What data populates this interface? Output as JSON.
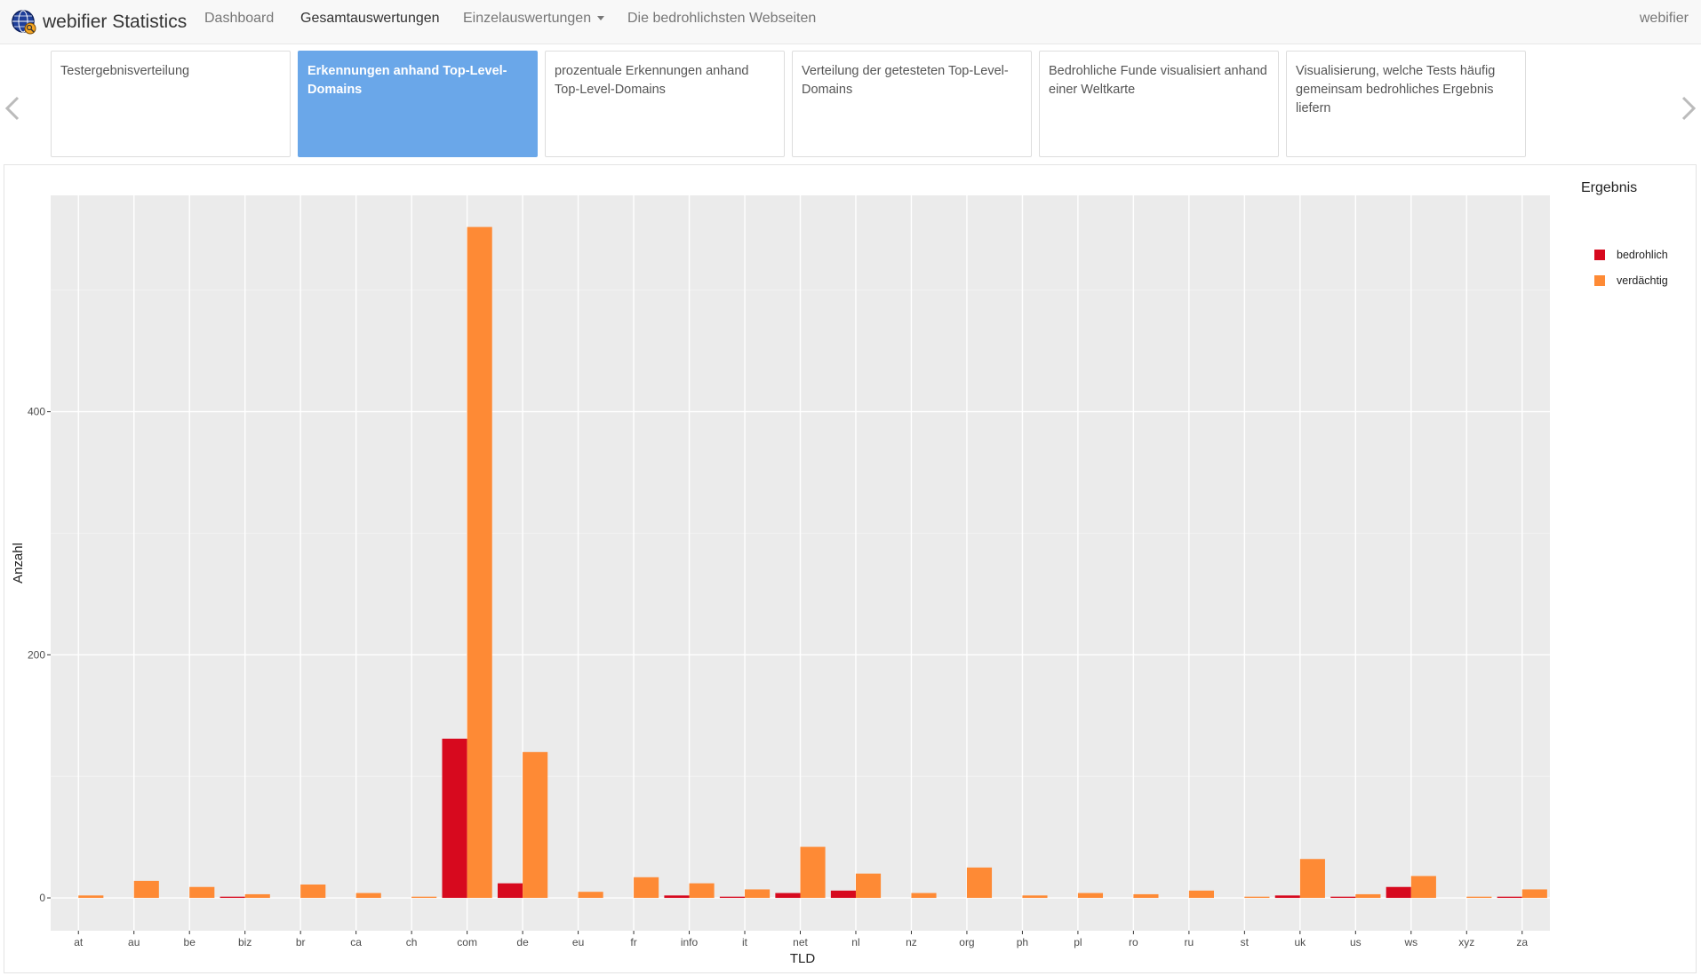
{
  "navbar": {
    "brand": "webifier Statistics",
    "items": [
      {
        "label": "Dashboard"
      },
      {
        "label": "Gesamtauswertungen"
      },
      {
        "label": "Einzelauswertungen"
      },
      {
        "label": "Die bedrohlichsten Webseiten"
      }
    ],
    "right_label": "webifier"
  },
  "carousel": {
    "cards": [
      {
        "label": "Testergebnisverteilung"
      },
      {
        "label": "Erkennungen anhand Top-Level-Domains"
      },
      {
        "label": "prozentuale Erkennungen anhand Top-Level-Domains"
      },
      {
        "label": "Verteilung der getesteten Top-Level-Domains"
      },
      {
        "label": "Bedrohliche Funde visualisiert anhand einer Weltkarte"
      },
      {
        "label": "Visualisierung, welche Tests häufig gemeinsam bedrohliches Ergebnis liefern"
      }
    ],
    "active_index": 1
  },
  "chart_data": {
    "type": "bar",
    "xlabel": "TLD",
    "ylabel": "Anzahl",
    "legend_title": "Ergebnis",
    "legend_position": "right",
    "grid": true,
    "ylim": [
      -27,
      578
    ],
    "yticks": [
      0,
      200,
      400
    ],
    "categories": [
      "at",
      "au",
      "be",
      "biz",
      "br",
      "ca",
      "ch",
      "com",
      "de",
      "eu",
      "fr",
      "info",
      "it",
      "net",
      "nl",
      "nz",
      "org",
      "ph",
      "pl",
      "ro",
      "ru",
      "st",
      "uk",
      "us",
      "ws",
      "xyz",
      "za"
    ],
    "series": [
      {
        "name": "bedrohlich",
        "color": "#d7091e",
        "values": [
          0,
          0,
          0,
          1,
          0,
          0,
          0,
          131,
          12,
          0,
          0,
          2,
          1,
          4,
          6,
          0,
          0,
          0,
          0,
          0,
          0,
          0,
          2,
          1,
          9,
          0,
          1
        ]
      },
      {
        "name": "verdächtig",
        "color": "#fe8a35",
        "values": [
          2,
          14,
          9,
          3,
          11,
          4,
          1,
          552,
          120,
          5,
          17,
          12,
          7,
          42,
          20,
          4,
          25,
          2,
          4,
          3,
          6,
          1,
          32,
          3,
          18,
          1,
          7
        ]
      }
    ]
  }
}
